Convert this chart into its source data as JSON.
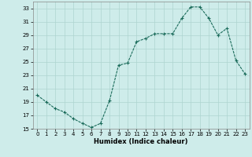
{
  "x": [
    0,
    1,
    2,
    3,
    4,
    5,
    6,
    7,
    8,
    9,
    10,
    11,
    12,
    13,
    14,
    15,
    16,
    17,
    18,
    19,
    20,
    21,
    22,
    23
  ],
  "y": [
    20,
    19,
    18,
    17.5,
    16.5,
    15.8,
    15.2,
    15.8,
    19.2,
    24.5,
    24.8,
    28.0,
    28.5,
    29.2,
    29.2,
    29.2,
    31.5,
    33.2,
    33.2,
    31.5,
    29.0,
    30.0,
    25.2,
    23.2
  ],
  "line_color": "#1a6b5a",
  "marker": "+",
  "marker_size": 3,
  "marker_lw": 0.8,
  "line_width": 0.8,
  "bg_color": "#ceecea",
  "grid_color": "#aed4d0",
  "xlabel": "Humidex (Indice chaleur)",
  "xlabel_fontsize": 6,
  "tick_fontsize": 5,
  "xlim": [
    -0.5,
    23.5
  ],
  "ylim": [
    15,
    34
  ],
  "yticks": [
    15,
    17,
    19,
    21,
    23,
    25,
    27,
    29,
    31,
    33
  ],
  "xticks": [
    0,
    1,
    2,
    3,
    4,
    5,
    6,
    7,
    8,
    9,
    10,
    11,
    12,
    13,
    14,
    15,
    16,
    17,
    18,
    19,
    20,
    21,
    22,
    23
  ]
}
